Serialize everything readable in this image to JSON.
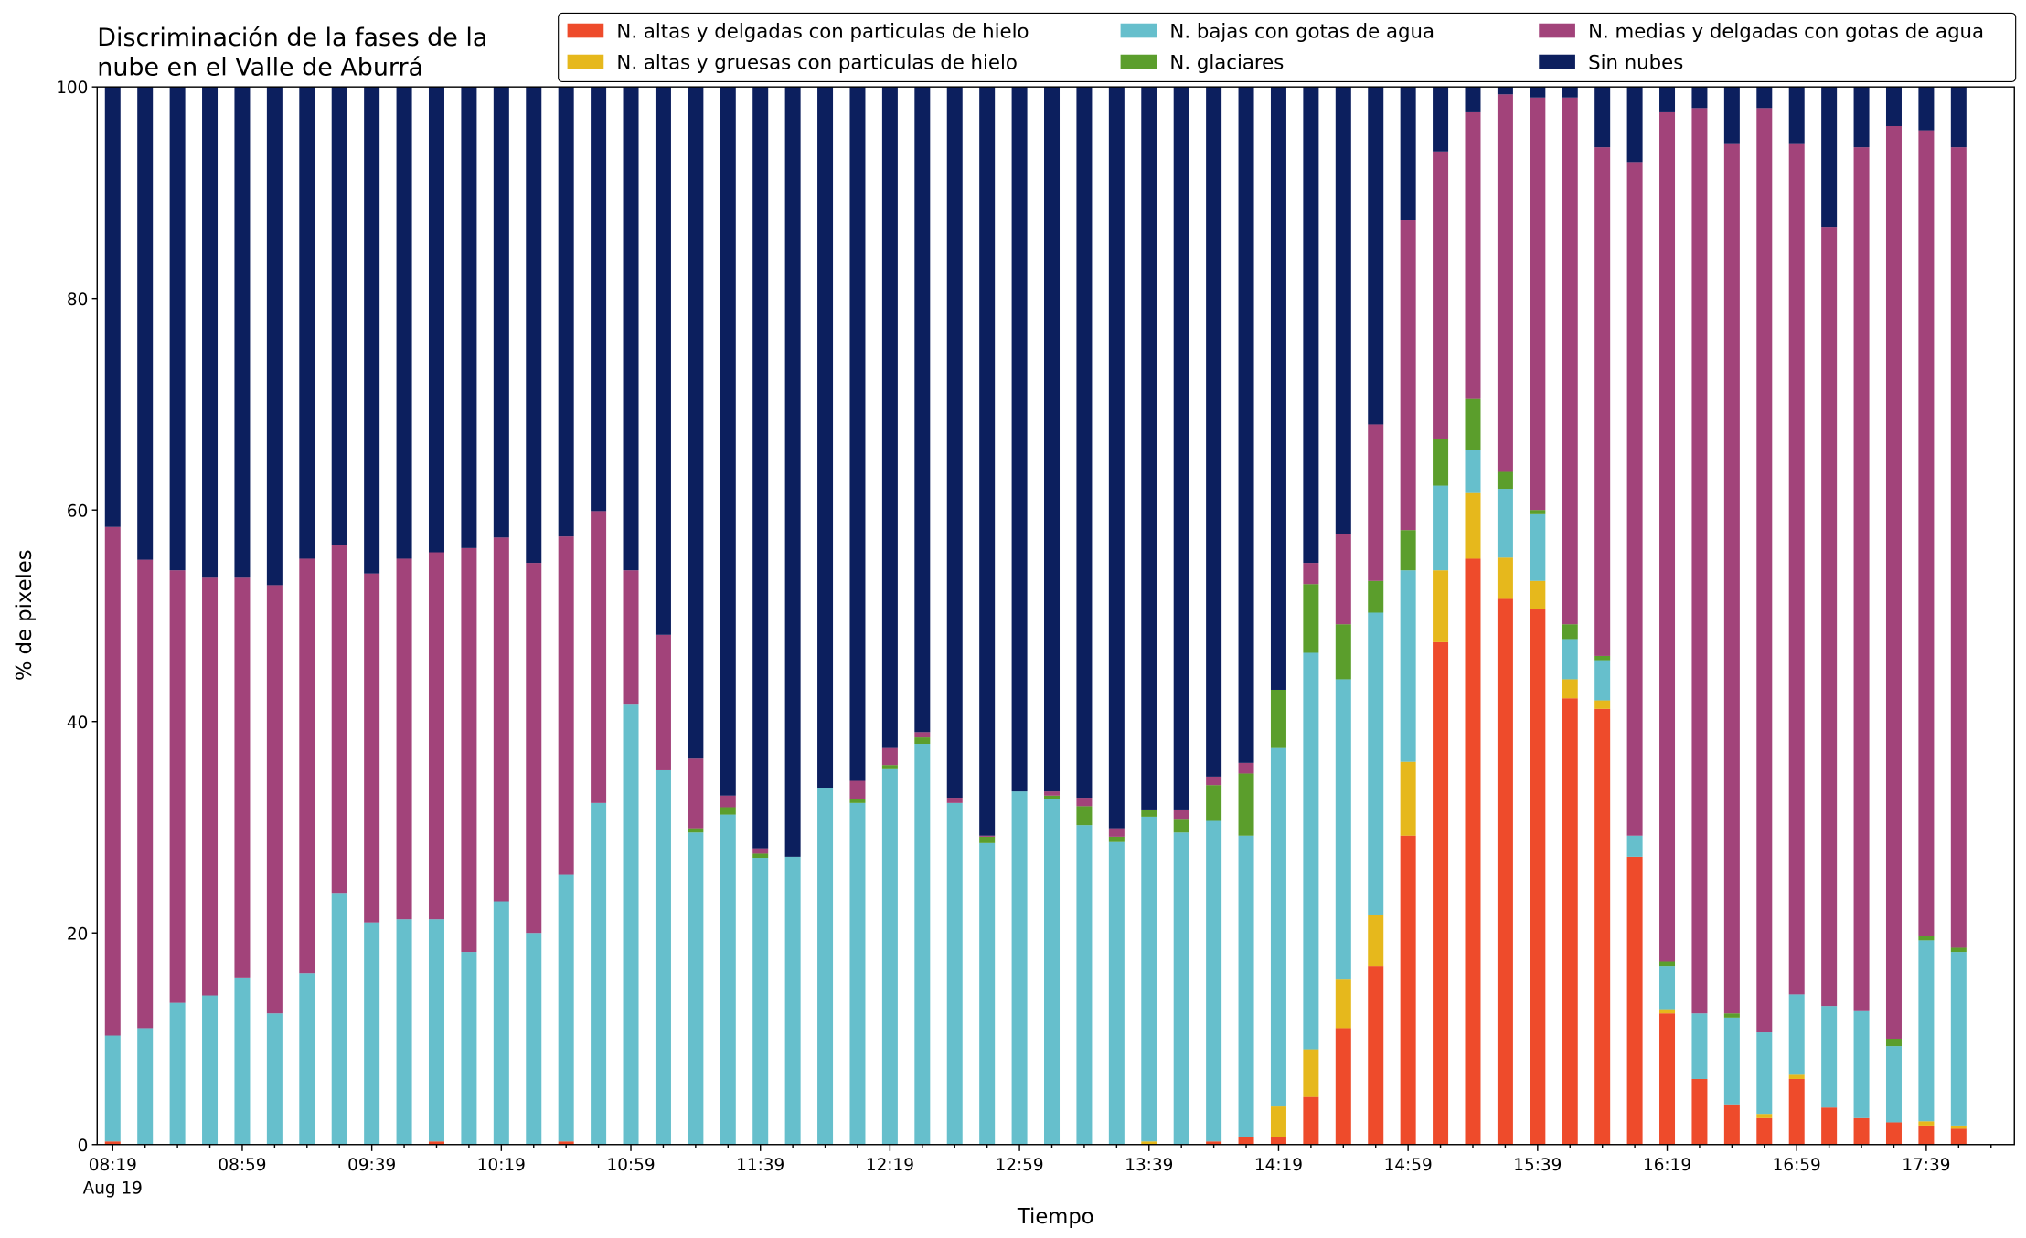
{
  "chart_data": {
    "type": "stacked_bar",
    "title": [
      "Discriminación de la fases de la",
      "nube en el Valle de Aburrá"
    ],
    "xlabel": "Tiempo",
    "ylabel": "% de pixeles",
    "date_label": "Aug 19",
    "categories": [
      "08:19",
      null,
      null,
      null,
      "08:59",
      null,
      null,
      null,
      "09:39",
      null,
      null,
      null,
      "10:19",
      null,
      null,
      null,
      "10:59",
      null,
      null,
      null,
      "11:39",
      null,
      null,
      null,
      "12:19",
      null,
      null,
      null,
      "12:59",
      null,
      null,
      null,
      "13:39",
      null,
      null,
      null,
      "14:19",
      null,
      null,
      null,
      "14:59",
      null,
      null,
      null,
      "15:39",
      null,
      null,
      null,
      "16:19",
      null,
      null,
      null,
      "16:59",
      null,
      null,
      null,
      "17:39",
      null
    ],
    "ylim": [
      0,
      100
    ],
    "yticks": [
      0,
      20,
      40,
      60,
      80,
      100
    ],
    "legend": "top-right",
    "series": [
      {
        "name": "N. altas y delgadas con particulas de hielo",
        "color": "#ee4b2b",
        "values": [
          0.3,
          0,
          0,
          0,
          0,
          0,
          0,
          0,
          0,
          0,
          0.3,
          0,
          0,
          0,
          0.3,
          0,
          0,
          0,
          0,
          0,
          0,
          0,
          0,
          0,
          0,
          0,
          0,
          0,
          0,
          0,
          0,
          0,
          0,
          0,
          0.3,
          0.7,
          0.7,
          4.5,
          11,
          16.9,
          29.2,
          47.5,
          55.4,
          51.6,
          50.6,
          42.2,
          41.2,
          27.2,
          12.4,
          6.2,
          3.8,
          2.5,
          6.2,
          3.5,
          2.5,
          2.1,
          1.8,
          1.5
        ]
      },
      {
        "name": "N. altas y gruesas con particulas de hielo",
        "color": "#e6b81c",
        "values": [
          0,
          0,
          0,
          0,
          0,
          0,
          0,
          0,
          0,
          0,
          0,
          0,
          0,
          0,
          0,
          0,
          0,
          0,
          0,
          0,
          0,
          0,
          0,
          0,
          0,
          0,
          0,
          0,
          0,
          0,
          0,
          0,
          0.3,
          0,
          0,
          0,
          2.9,
          4.5,
          4.6,
          4.8,
          7,
          6.8,
          6.2,
          3.9,
          2.7,
          1.8,
          0.8,
          0,
          0.4,
          0,
          0,
          0.4,
          0.4,
          0,
          0,
          0,
          0.4,
          0.3
        ]
      },
      {
        "name": "N. bajas con gotas de agua",
        "color": "#66bfcc",
        "values": [
          10,
          11,
          13.4,
          14.1,
          15.8,
          12.4,
          16.2,
          23.8,
          21,
          21.3,
          21,
          18.2,
          23,
          20,
          25.2,
          32.3,
          41.6,
          35.4,
          29.5,
          31.2,
          27.1,
          27.2,
          33.7,
          32.3,
          35.5,
          37.9,
          32.3,
          28.5,
          33.4,
          32.7,
          30.2,
          28.6,
          30.7,
          29.5,
          30.3,
          28.5,
          33.9,
          37.5,
          28.4,
          28.6,
          18.1,
          8,
          4.1,
          6.5,
          6.3,
          3.8,
          3.8,
          2,
          4.1,
          6.2,
          8.2,
          7.7,
          7.6,
          9.6,
          10.2,
          7.2,
          17.1,
          16.4
        ]
      },
      {
        "name": "N. glaciares",
        "color": "#5b9e2c",
        "values": [
          0,
          0,
          0,
          0,
          0,
          0,
          0,
          0,
          0,
          0,
          0,
          0,
          0,
          0,
          0,
          0,
          0,
          0,
          0.4,
          0.7,
          0.4,
          0,
          0,
          0.4,
          0.4,
          0.6,
          0,
          0.6,
          0,
          0.3,
          1.8,
          0.5,
          0.6,
          1.3,
          3.4,
          5.9,
          5.5,
          6.5,
          5.2,
          3,
          3.8,
          4.4,
          4.8,
          1.6,
          0.4,
          1.4,
          0.4,
          0,
          0.4,
          0,
          0.4,
          0,
          0,
          0,
          0,
          0.7,
          0.4,
          0.4
        ]
      },
      {
        "name": "N. medias y delgadas con gotas de agua",
        "color": "#a2437a",
        "values": [
          48.1,
          44.3,
          40.9,
          39.5,
          37.8,
          40.5,
          39.2,
          32.9,
          33,
          34.1,
          34.7,
          38.2,
          34.4,
          35,
          32,
          27.6,
          12.7,
          12.8,
          6.6,
          1.1,
          0.5,
          0,
          0,
          1.7,
          1.6,
          0.5,
          0.5,
          0.1,
          0,
          0.4,
          0.8,
          0.8,
          0,
          0.8,
          0.8,
          1,
          0,
          2,
          8.5,
          14.8,
          29.3,
          27.2,
          27.1,
          35.7,
          39,
          49.8,
          48.1,
          63.7,
          80.3,
          85.6,
          82.2,
          87.4,
          80.4,
          73.6,
          81.6,
          86.3,
          76.2,
          75.7
        ]
      },
      {
        "name": "Sin nubes",
        "color": "#0c1f5e",
        "values": [
          41.6,
          44.7,
          45.7,
          46.4,
          46.4,
          47.1,
          44.6,
          43.3,
          46,
          44.6,
          44,
          43.6,
          42.6,
          45,
          42.5,
          40.1,
          45.7,
          51.8,
          63.5,
          67,
          72,
          72.8,
          66.3,
          65.6,
          62.5,
          61,
          67.2,
          70.8,
          66.6,
          66.6,
          67.2,
          70.1,
          68.4,
          68.4,
          65.2,
          63.9,
          57,
          45,
          42.3,
          31.9,
          12.6,
          6.1,
          2.4,
          0.7,
          1,
          1,
          5.7,
          7.1,
          2.4,
          2,
          5.4,
          2,
          5.4,
          13.3,
          5.7,
          3.7,
          4.1,
          5.7
        ]
      }
    ]
  }
}
